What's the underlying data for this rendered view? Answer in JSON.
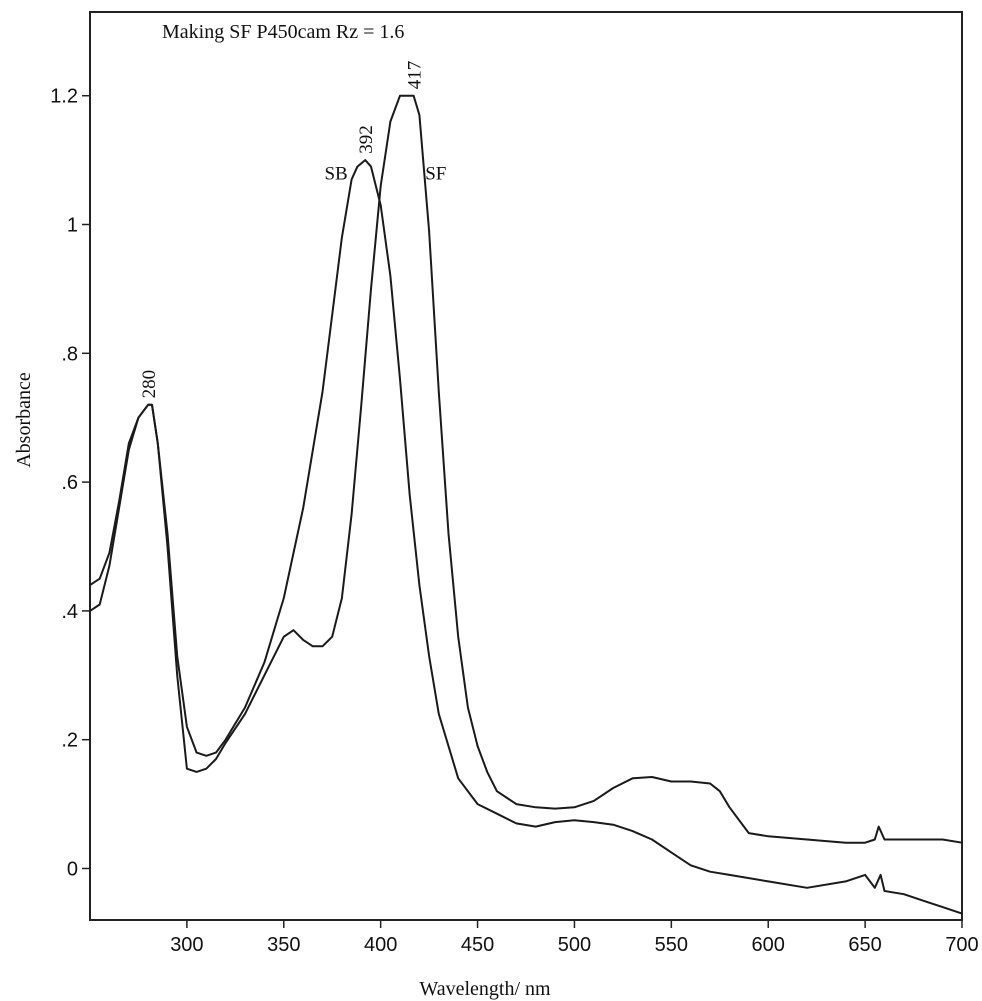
{
  "chart_data": {
    "type": "line",
    "title": "Making SF P450cam Rz = 1.6",
    "xlabel": "Wavelength/ nm",
    "ylabel": "Absorbance",
    "xlim": [
      250,
      700
    ],
    "ylim": [
      -0.08,
      1.33
    ],
    "x_ticks": [
      300,
      350,
      400,
      450,
      500,
      550,
      600,
      650,
      700
    ],
    "x_tick_labels": [
      "300",
      "350",
      "400",
      "450",
      "500",
      "550",
      "600",
      "650",
      "700"
    ],
    "y_ticks": [
      0,
      0.2,
      0.4,
      0.6,
      0.8,
      1.0,
      1.2
    ],
    "y_tick_labels": [
      "0",
      ".2",
      ".4",
      ".6",
      ".8",
      "1",
      "1.2"
    ],
    "grid": false,
    "legend": "none",
    "series": [
      {
        "name": "SB",
        "x": [
          250,
          255,
          260,
          265,
          270,
          275,
          280,
          282,
          285,
          290,
          295,
          300,
          305,
          310,
          315,
          320,
          330,
          340,
          350,
          360,
          370,
          375,
          380,
          385,
          388,
          392,
          395,
          400,
          405,
          410,
          415,
          420,
          425,
          430,
          440,
          450,
          460,
          470,
          480,
          490,
          500,
          510,
          520,
          530,
          540,
          550,
          560,
          570,
          580,
          600,
          620,
          640,
          650,
          655,
          658,
          660,
          670,
          680,
          690,
          700
        ],
        "y": [
          0.4,
          0.41,
          0.47,
          0.56,
          0.65,
          0.7,
          0.72,
          0.72,
          0.66,
          0.52,
          0.33,
          0.22,
          0.18,
          0.175,
          0.18,
          0.2,
          0.25,
          0.32,
          0.42,
          0.56,
          0.74,
          0.86,
          0.98,
          1.07,
          1.09,
          1.1,
          1.09,
          1.03,
          0.92,
          0.76,
          0.58,
          0.44,
          0.33,
          0.24,
          0.14,
          0.1,
          0.085,
          0.07,
          0.065,
          0.072,
          0.075,
          0.072,
          0.068,
          0.058,
          0.045,
          0.025,
          0.005,
          -0.005,
          -0.01,
          -0.02,
          -0.03,
          -0.02,
          -0.01,
          -0.03,
          -0.01,
          -0.035,
          -0.04,
          -0.05,
          -0.06,
          -0.07
        ]
      },
      {
        "name": "SF",
        "x": [
          250,
          255,
          260,
          265,
          270,
          275,
          280,
          282,
          285,
          290,
          295,
          300,
          305,
          310,
          315,
          320,
          330,
          340,
          350,
          355,
          360,
          365,
          370,
          375,
          380,
          385,
          390,
          395,
          400,
          405,
          410,
          415,
          417,
          420,
          425,
          430,
          435,
          440,
          445,
          450,
          455,
          460,
          470,
          480,
          490,
          500,
          510,
          520,
          530,
          540,
          550,
          560,
          570,
          575,
          580,
          590,
          600,
          620,
          640,
          650,
          655,
          657,
          660,
          670,
          680,
          690,
          700
        ],
        "y": [
          0.44,
          0.45,
          0.49,
          0.57,
          0.66,
          0.7,
          0.72,
          0.72,
          0.66,
          0.5,
          0.3,
          0.155,
          0.15,
          0.155,
          0.17,
          0.195,
          0.24,
          0.3,
          0.36,
          0.37,
          0.355,
          0.345,
          0.345,
          0.36,
          0.42,
          0.55,
          0.72,
          0.9,
          1.06,
          1.16,
          1.2,
          1.2,
          1.2,
          1.17,
          0.99,
          0.74,
          0.52,
          0.36,
          0.25,
          0.19,
          0.15,
          0.12,
          0.1,
          0.095,
          0.093,
          0.095,
          0.105,
          0.125,
          0.14,
          0.142,
          0.135,
          0.135,
          0.132,
          0.12,
          0.095,
          0.055,
          0.05,
          0.045,
          0.04,
          0.04,
          0.045,
          0.065,
          0.045,
          0.045,
          0.045,
          0.045,
          0.04
        ]
      }
    ],
    "annotations": [
      {
        "text": "280",
        "x": 280,
        "y": 0.73,
        "rotate": -90
      },
      {
        "text": "392",
        "x": 392,
        "y": 1.11,
        "rotate": -90
      },
      {
        "text": "417",
        "x": 417,
        "y": 1.21,
        "rotate": -90
      },
      {
        "text": "SB",
        "x": 383,
        "y": 1.07,
        "rotate": 0,
        "anchor": "end"
      },
      {
        "text": "SF",
        "x": 423,
        "y": 1.07,
        "rotate": 0,
        "anchor": "start"
      }
    ]
  }
}
